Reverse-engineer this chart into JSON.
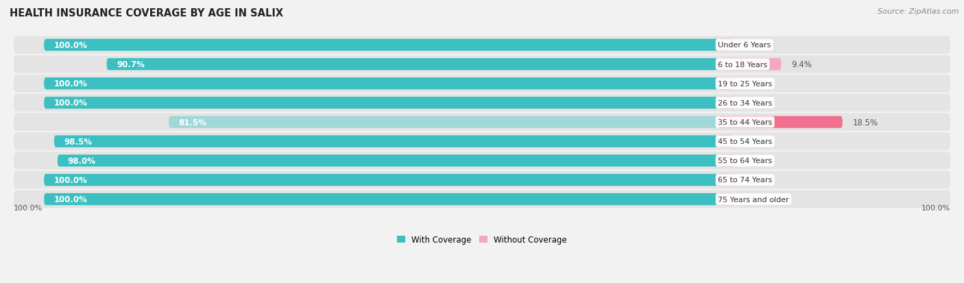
{
  "title": "HEALTH INSURANCE COVERAGE BY AGE IN SALIX",
  "source": "Source: ZipAtlas.com",
  "categories": [
    "Under 6 Years",
    "6 to 18 Years",
    "19 to 25 Years",
    "26 to 34 Years",
    "35 to 44 Years",
    "45 to 54 Years",
    "55 to 64 Years",
    "65 to 74 Years",
    "75 Years and older"
  ],
  "with_coverage": [
    100.0,
    90.7,
    100.0,
    100.0,
    81.5,
    98.5,
    98.0,
    100.0,
    100.0
  ],
  "without_coverage": [
    0.0,
    9.4,
    0.0,
    0.0,
    18.5,
    1.5,
    2.0,
    0.0,
    0.0
  ],
  "color_with": "#3bbfc0",
  "color_without": "#f07090",
  "color_without_light": "#f4a8c0",
  "color_with_light": "#a0d8d8",
  "bg_color": "#f2f2f2",
  "bar_bg": "#dcdcdc",
  "title_fontsize": 10.5,
  "source_fontsize": 8,
  "label_fontsize": 8.5,
  "axis_label_fontsize": 8
}
